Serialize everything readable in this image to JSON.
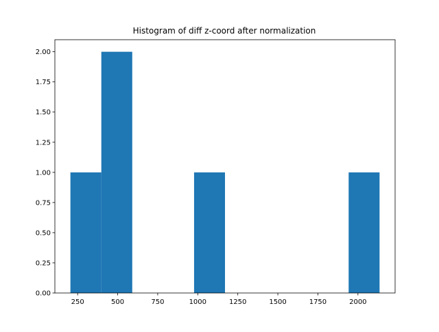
{
  "chart_data": {
    "type": "bar",
    "title": "Histogram of diff z-coord after normalization",
    "xlabel": "",
    "ylabel": "",
    "bins": [
      {
        "x0": 205,
        "x1": 398,
        "value": 1
      },
      {
        "x0": 398,
        "x1": 591,
        "value": 2
      },
      {
        "x0": 591,
        "x1": 784,
        "value": 0
      },
      {
        "x0": 784,
        "x1": 977,
        "value": 0
      },
      {
        "x0": 977,
        "x1": 1170,
        "value": 1
      },
      {
        "x0": 1170,
        "x1": 1363,
        "value": 0
      },
      {
        "x0": 1363,
        "x1": 1556,
        "value": 0
      },
      {
        "x0": 1556,
        "x1": 1749,
        "value": 0
      },
      {
        "x0": 1749,
        "x1": 1942,
        "value": 0
      },
      {
        "x0": 1942,
        "x1": 2135,
        "value": 1
      }
    ],
    "xlim": [
      108,
      2232
    ],
    "ylim": [
      0,
      2.1
    ],
    "xticks": [
      250,
      500,
      750,
      1000,
      1250,
      1500,
      1750,
      2000
    ],
    "xtick_labels": [
      "250",
      "500",
      "750",
      "1000",
      "1250",
      "1500",
      "1750",
      "2000"
    ],
    "yticks": [
      0,
      0.25,
      0.5,
      0.75,
      1.0,
      1.25,
      1.5,
      1.75,
      2.0
    ],
    "ytick_labels": [
      "0.00",
      "0.25",
      "0.50",
      "0.75",
      "1.00",
      "1.25",
      "1.50",
      "1.75",
      "2.00"
    ],
    "bar_color": "#1f77b4",
    "grid": false,
    "legend": "none"
  }
}
